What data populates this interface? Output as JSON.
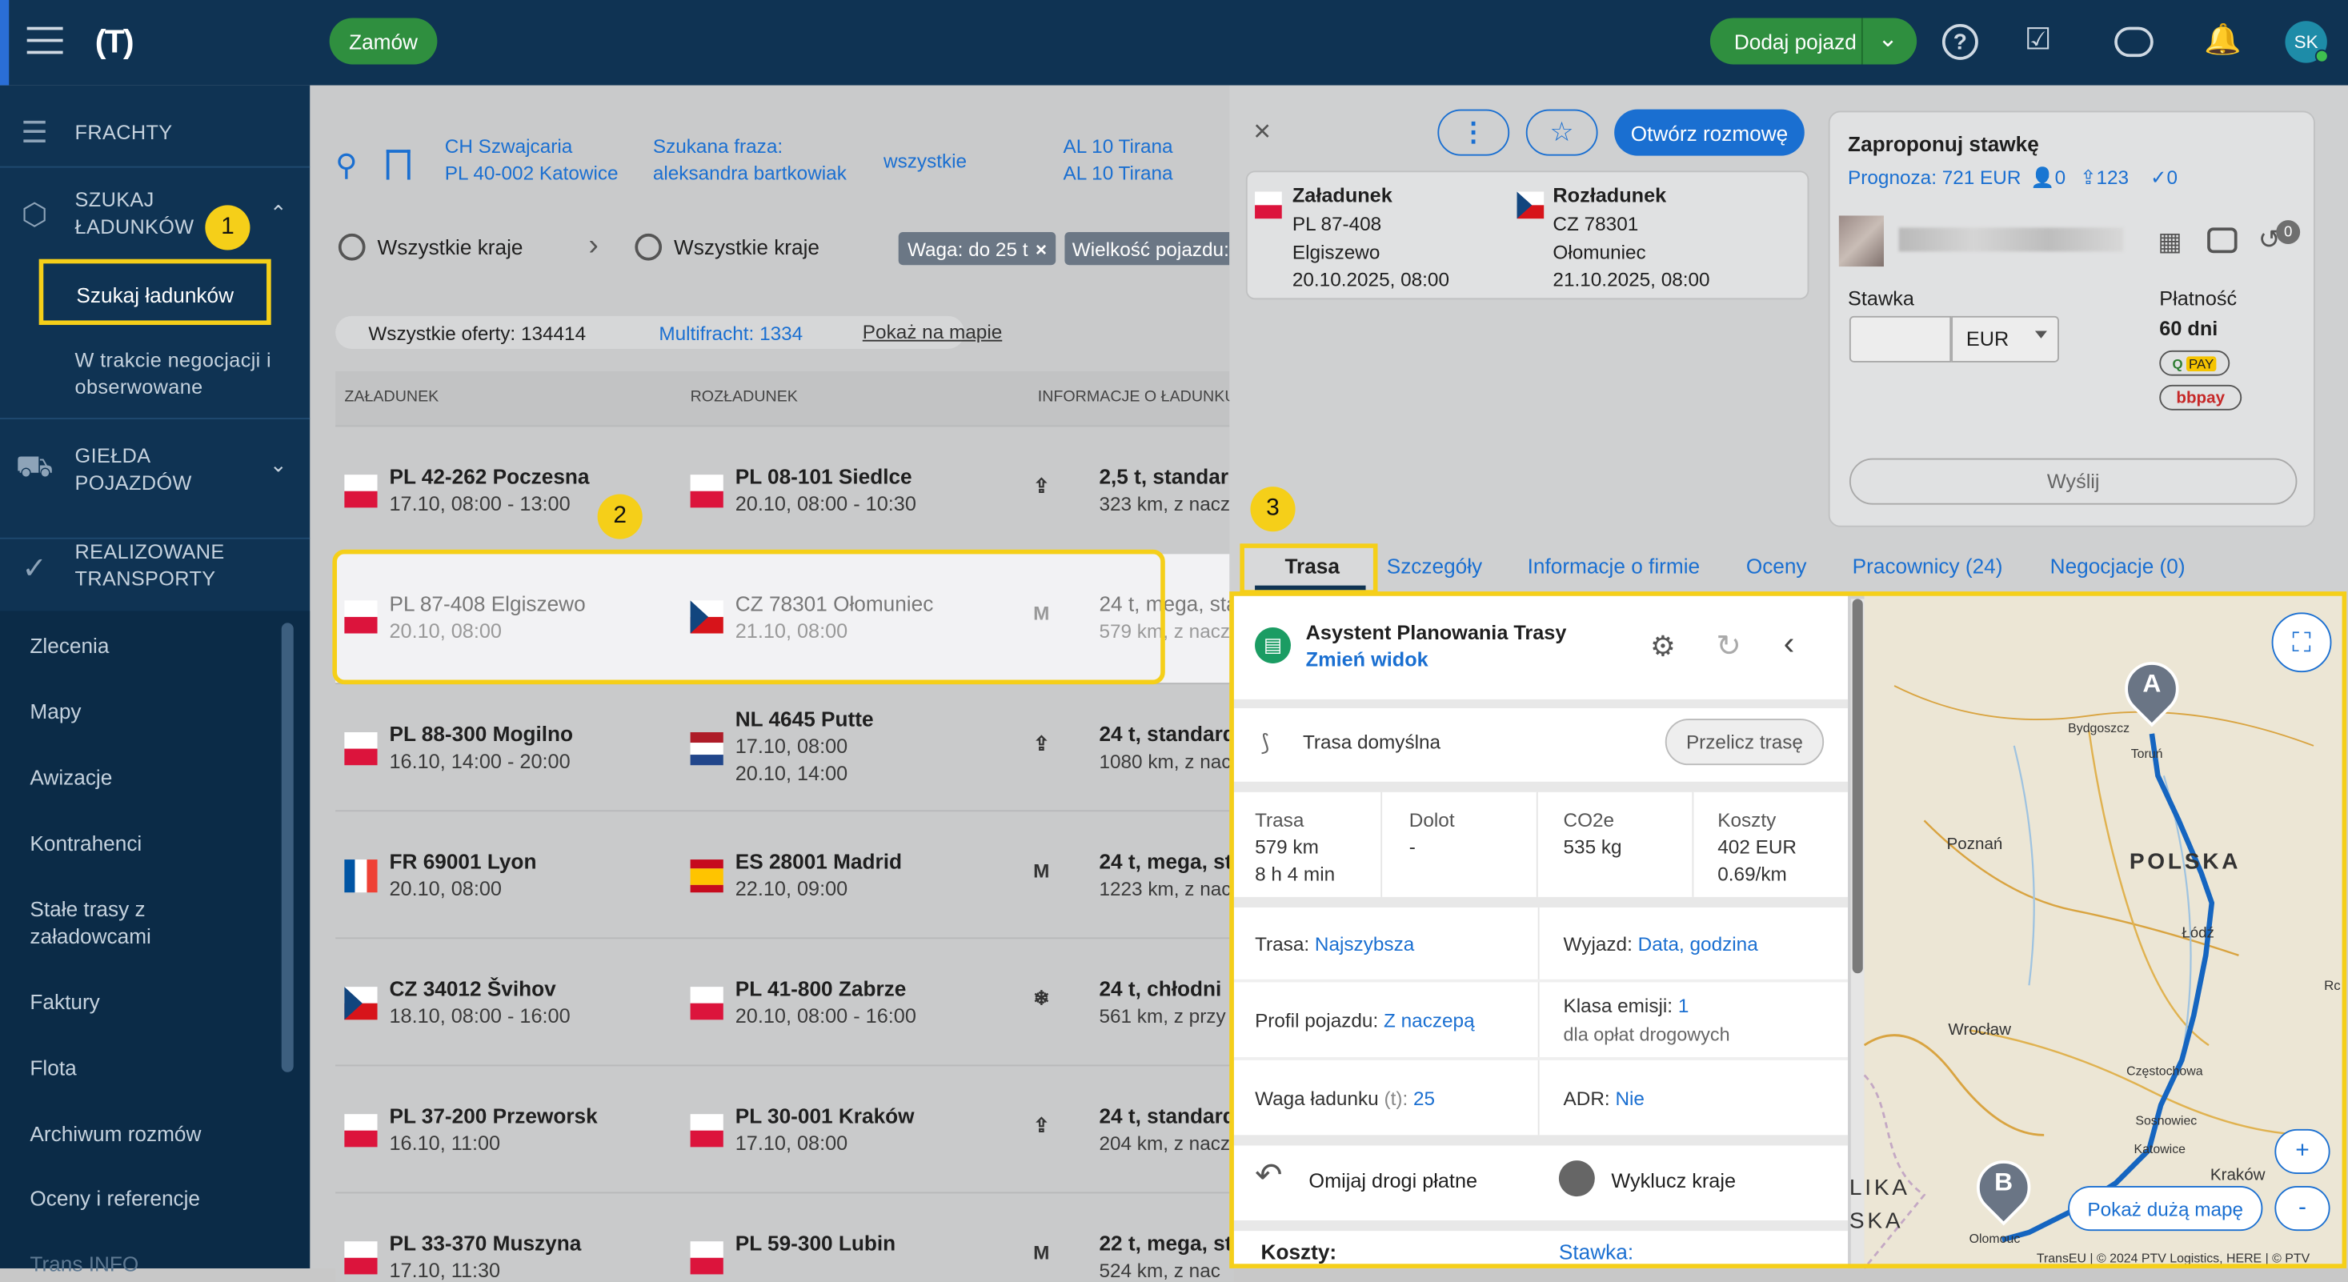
{
  "header": {
    "order_button": "Zamów",
    "add_vehicle_button": "Dodaj pojazd",
    "avatar": "SK"
  },
  "sidebar": {
    "sections": [
      {
        "label_lines": [
          "FRACHTY"
        ]
      },
      {
        "label_lines": [
          "SZUKAJ",
          "ŁADUNKÓW"
        ]
      },
      {
        "label_lines": [
          "GIEŁDA",
          "POJAZDÓW"
        ]
      },
      {
        "label_lines": [
          "REALIZOWANE",
          "TRANSPORTY"
        ]
      }
    ],
    "search_cargo": "Szukaj ładunków",
    "negotiation_lines": [
      "W trakcie negocjacji i",
      "obserwowane"
    ],
    "items": [
      "Zlecenia",
      "Mapy",
      "Awizacje",
      "Kontrahenci",
      "Stałe trasy z|załadowcami",
      "Faktury",
      "Flota",
      "Archiwum rozmów",
      "Oceny i referencje",
      "Trans INFO"
    ]
  },
  "filters": {
    "from_lines": [
      "CH Szwajcaria",
      "PL 40-002 Katowice"
    ],
    "phrase_lines": [
      "Szukana fraza:",
      "aleksandra bartkowiak"
    ],
    "all": "wszystkie",
    "to_lines": [
      "AL 10 Tirana",
      "AL 10 Tirana"
    ],
    "country_from": "Wszystkie kraje",
    "country_to": "Wszystkie kraje",
    "chip_weight": "Waga: do 25 t",
    "chip_size": "Wielkość pojazdu:",
    "all_offers_label": "Wszystkie oferty:",
    "all_offers_count": "134414",
    "multifreight_label": "Multifracht:",
    "multifreight_count": "1334",
    "show_map": "Pokaż na mapie"
  },
  "table": {
    "headers": [
      "ZAŁADUNEK",
      "ROZŁADUNEK",
      "INFORMACJE O ŁADUNKU"
    ],
    "rows": [
      {
        "from_city": "PL 42-262 Poczesna",
        "from_date": "17.10, 08:00 - 13:00",
        "to_city": "PL 08-101 Siedlce",
        "to_date": "20.10, 08:00 - 10:30",
        "to_date2": "",
        "info": "2,5 t, standar",
        "sub": "323 km, z nacz"
      },
      {
        "from_city": "PL 87-408 Elgiszewo",
        "from_date": "20.10, 08:00",
        "to_city": "CZ 78301 Ołomuniec",
        "to_date": "21.10, 08:00",
        "to_date2": "",
        "info": "24 t, mega, sta",
        "sub": "579 km, z nacz"
      },
      {
        "from_city": "PL 88-300 Mogilno",
        "from_date": "16.10, 14:00 - 20:00",
        "to_city": "NL 4645 Putte",
        "to_date": "17.10, 08:00",
        "to_date2": "20.10, 14:00",
        "info": "24 t, standard",
        "sub": "1080 km, z nac"
      },
      {
        "from_city": "FR 69001 Lyon",
        "from_date": "20.10, 08:00",
        "to_city": "ES 28001 Madrid",
        "to_date": "22.10, 09:00",
        "to_date2": "",
        "info": "24 t, mega, st",
        "sub": "1223 km, z nac"
      },
      {
        "from_city": "CZ 34012 Švihov",
        "from_date": "18.10, 08:00 - 16:00",
        "to_city": "PL 41-800 Zabrze",
        "to_date": "20.10, 08:00 - 16:00",
        "to_date2": "",
        "info": "24 t, chłodni",
        "sub": "561 km, z przy"
      },
      {
        "from_city": "PL 37-200 Przeworsk",
        "from_date": "16.10, 11:00",
        "to_city": "PL 30-001 Kraków",
        "to_date": "17.10, 08:00",
        "to_date2": "",
        "info": "24 t, standard",
        "sub": "204 km, z nacz"
      },
      {
        "from_city": "PL 33-370 Muszyna",
        "from_date": "17.10, 11:30",
        "to_city": "PL 59-300 Lubin",
        "to_date": "",
        "to_date2": "",
        "info": "22 t, mega, st",
        "sub": "524 km, z nac"
      }
    ]
  },
  "detail": {
    "open_chat": "Otwórz rozmowę",
    "loading_title": "Załadunek",
    "loading_lines": [
      "PL 87-408",
      "Elgiszewo",
      "20.10.2025, 08:00"
    ],
    "unloading_title": "Rozładunek",
    "unloading_lines": [
      "CZ 78301",
      "Ołomuniec",
      "21.10.2025, 08:00"
    ],
    "offer_title": "Zaproponuj stawkę",
    "forecast": "Prognoza: 721 EUR",
    "count_a": "0",
    "count_b": "123",
    "count_c": "0",
    "rate_label": "Stawka",
    "currency": "EUR",
    "payment_label": "Płatność",
    "payment_value": "60 dni",
    "pay1": "PAY",
    "pay2": "bbpay",
    "send": "Wyślij",
    "history_count": "0",
    "tabs": [
      "Trasa",
      "Szczegóły",
      "Informacje o firmie",
      "Oceny",
      "Pracownicy (24)",
      "Negocjacje (0)"
    ]
  },
  "planner": {
    "title": "Asystent Planowania Trasy",
    "change_view": "Zmień widok",
    "route_default": "Trasa domyślna",
    "recalc": "Przelicz trasę",
    "stats": [
      {
        "label": "Trasa",
        "lines": [
          "579 km",
          "8 h 4 min"
        ]
      },
      {
        "label": "Dolot",
        "lines": [
          "-"
        ]
      },
      {
        "label": "CO2e",
        "lines": [
          "535 kg"
        ]
      },
      {
        "label": "Koszty",
        "lines": [
          "402 EUR",
          "0.69/km"
        ]
      }
    ],
    "route_label": "Trasa:",
    "route_value": "Najszybsza",
    "departure_label": "Wyjazd:",
    "departure_value": "Data, godzina",
    "profile_label": "Profil pojazdu:",
    "profile_value": "Z naczepą",
    "emission_label": "Klasa emisji:",
    "emission_value": "1",
    "emission_sub": "dla opłat drogowych",
    "weight_label": "Waga ładunku",
    "weight_unit": "(t):",
    "weight_value": "25",
    "adr_label": "ADR:",
    "adr_value": "Nie",
    "avoid_tolls": "Omijaj drogi płatne",
    "exclude_countries": "Wyklucz kraje",
    "costs": "Koszty:",
    "rate": "Stawka:"
  },
  "map": {
    "cities": [
      "Bydgoszcz",
      "Toruń",
      "Poznań",
      "POLSKA",
      "Łódź",
      "Wrocław",
      "Częstochowa",
      "Sosnowiec",
      "Katowice",
      "Kraków",
      "Olomouc",
      "LIKA",
      "SKA",
      "Rc"
    ],
    "marker_a": "A",
    "marker_b": "B",
    "big_map": "Pokaż dużą mapę",
    "attribution": "TransEU | © 2024 PTV Logistics, HERE | © PTV"
  },
  "callouts": [
    "1",
    "2",
    "3"
  ]
}
